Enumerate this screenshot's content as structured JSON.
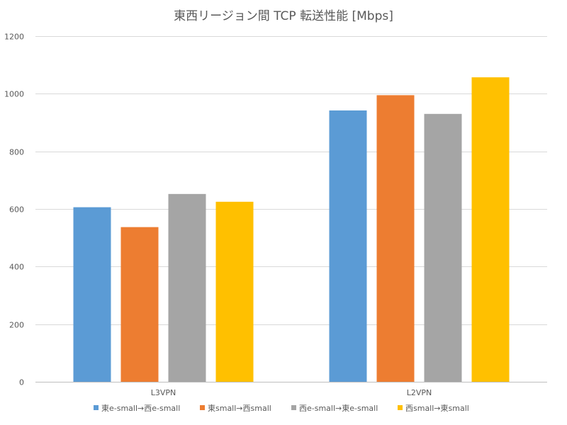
{
  "chart_data": {
    "type": "bar",
    "title": "東西リージョン間 TCP 転送性能 [Mbps]",
    "xlabel": "",
    "ylabel": "",
    "ylim": [
      0,
      1200
    ],
    "yticks": [
      0,
      200,
      400,
      600,
      800,
      1000,
      1200
    ],
    "categories": [
      "L3VPN",
      "L2VPN"
    ],
    "series": [
      {
        "name": "東e-small→西e-small",
        "color": "#5B9BD5",
        "values": [
          606,
          942
        ]
      },
      {
        "name": "東small→西small",
        "color": "#ED7D31",
        "values": [
          537,
          995
        ]
      },
      {
        "name": "西e-small→東e-small",
        "color": "#A5A5A5",
        "values": [
          652,
          930
        ]
      },
      {
        "name": "西small→東small",
        "color": "#FFC000",
        "values": [
          625,
          1057
        ]
      }
    ],
    "legend_position": "bottom",
    "grid": true
  }
}
